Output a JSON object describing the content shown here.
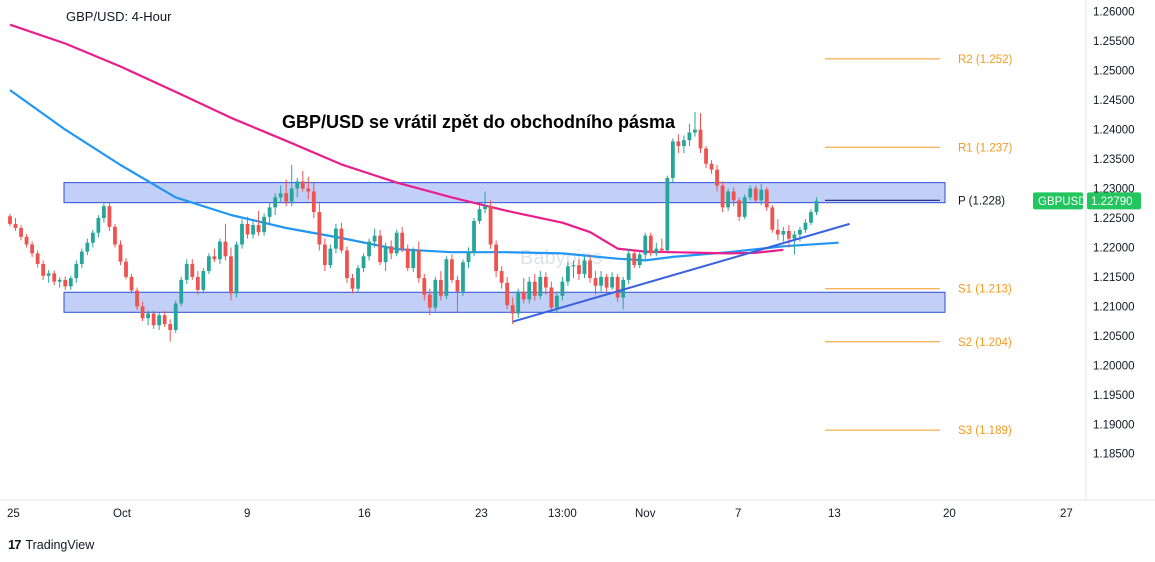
{
  "header": {
    "symbol_title": "GBP/USD: 4-Hour",
    "headline": "GBP/USD se vrátil zpět do obchodního pásma",
    "watermark": "Babypips"
  },
  "footer": {
    "brand": "TradingView",
    "brand_icon": "tradingview-logo-icon"
  },
  "colors": {
    "up_candle": "#26a69a",
    "down_candle": "#ef5350",
    "sma_fast": "#2196f3",
    "sma_slow": "#e91e8c",
    "zone_fill": "#b7c7f5",
    "zone_border": "#2b4fd8",
    "trendline": "#3962e0",
    "level_line": "#f59a23",
    "pivot_line": "#1a237e",
    "price_tag": "#22c55e"
  },
  "chart_data": {
    "type": "candlestick",
    "title": "GBP/USD: 4-Hour",
    "annotation": "GBP/USD se vrátil zpět do obchodního pásma",
    "ylim": [
      1.1808,
      1.2608
    ],
    "y_ticks": [
      "1.26000",
      "1.25500",
      "1.25000",
      "1.24500",
      "1.24000",
      "1.23500",
      "1.23000",
      "1.22500",
      "1.22000",
      "1.21500",
      "1.21000",
      "1.20500",
      "1.20000",
      "1.19500",
      "1.19000",
      "1.18500"
    ],
    "x_ticks": [
      "25",
      "Oct",
      "9",
      "16",
      "23",
      "13:00",
      "Nov",
      "7",
      "13",
      "20",
      "27"
    ],
    "current_price": {
      "label": "GBPUSD",
      "value": "1.22790"
    },
    "pivot_levels": [
      {
        "name": "R2",
        "label": "R2 (1.252)",
        "value": 1.252
      },
      {
        "name": "R1",
        "label": "R1 (1.237)",
        "value": 1.237
      },
      {
        "name": "P",
        "label": "P (1.228)",
        "value": 1.228
      },
      {
        "name": "S1",
        "label": "S1 (1.213)",
        "value": 1.213
      },
      {
        "name": "S2",
        "label": "S2 (1.204)",
        "value": 1.204
      },
      {
        "name": "S3",
        "label": "S3 (1.189)",
        "value": 1.189
      }
    ],
    "zones": [
      {
        "name": "resistance-zone",
        "from": 1.2276,
        "to": 1.231
      },
      {
        "name": "support-zone",
        "from": 1.209,
        "to": 1.2124
      }
    ],
    "trendline": {
      "from": {
        "bar": 91,
        "price": 1.2074
      },
      "to": {
        "bar": 152,
        "price": 1.224
      }
    },
    "series": [
      {
        "name": "SMA fast",
        "points": [
          [
            0,
            1.2467
          ],
          [
            10,
            1.24
          ],
          [
            20,
            1.234
          ],
          [
            30,
            1.2285
          ],
          [
            40,
            1.2255
          ],
          [
            50,
            1.2233
          ],
          [
            60,
            1.2216
          ],
          [
            70,
            1.2197
          ],
          [
            80,
            1.2192
          ],
          [
            90,
            1.2192
          ],
          [
            100,
            1.219
          ],
          [
            110,
            1.2181
          ],
          [
            115,
            1.2178
          ],
          [
            120,
            1.2184
          ],
          [
            130,
            1.2192
          ],
          [
            140,
            1.2202
          ],
          [
            150,
            1.2208
          ]
        ]
      },
      {
        "name": "SMA slow",
        "points": [
          [
            0,
            1.2578
          ],
          [
            10,
            1.2546
          ],
          [
            20,
            1.2507
          ],
          [
            30,
            1.2464
          ],
          [
            40,
            1.242
          ],
          [
            50,
            1.2381
          ],
          [
            60,
            1.2341
          ],
          [
            70,
            1.231
          ],
          [
            80,
            1.2285
          ],
          [
            90,
            1.2262
          ],
          [
            100,
            1.2242
          ],
          [
            105,
            1.2226
          ],
          [
            110,
            1.2198
          ],
          [
            115,
            1.2193
          ],
          [
            120,
            1.2192
          ],
          [
            130,
            1.219
          ],
          [
            135,
            1.2191
          ],
          [
            140,
            1.2196
          ]
        ]
      }
    ],
    "ohlc_4h": [
      [
        1.2253,
        1.2257,
        1.2236,
        1.224
      ],
      [
        1.224,
        1.225,
        1.2228,
        1.2233
      ],
      [
        1.2233,
        1.2238,
        1.2212,
        1.2218
      ],
      [
        1.2218,
        1.2223,
        1.22,
        1.2205
      ],
      [
        1.2205,
        1.221,
        1.2184,
        1.219
      ],
      [
        1.219,
        1.2195,
        1.2166,
        1.2172
      ],
      [
        1.2172,
        1.2178,
        1.2145,
        1.2152
      ],
      [
        1.2152,
        1.2162,
        1.214,
        1.2156
      ],
      [
        1.2156,
        1.2161,
        1.2136,
        1.2142
      ],
      [
        1.2142,
        1.215,
        1.2132,
        1.2145
      ],
      [
        1.2145,
        1.2151,
        1.2128,
        1.2134
      ],
      [
        1.2134,
        1.2152,
        1.2128,
        1.2148
      ],
      [
        1.2148,
        1.2178,
        1.214,
        1.2172
      ],
      [
        1.2172,
        1.2198,
        1.2165,
        1.2193
      ],
      [
        1.2193,
        1.2215,
        1.2187,
        1.2208
      ],
      [
        1.2208,
        1.223,
        1.22,
        1.2225
      ],
      [
        1.2225,
        1.2255,
        1.2217,
        1.225
      ],
      [
        1.225,
        1.2275,
        1.2242,
        1.227
      ],
      [
        1.227,
        1.2276,
        1.2228,
        1.2235
      ],
      [
        1.2235,
        1.224,
        1.22,
        1.2205
      ],
      [
        1.2205,
        1.2212,
        1.217,
        1.2176
      ],
      [
        1.2176,
        1.2182,
        1.2146,
        1.215
      ],
      [
        1.215,
        1.2155,
        1.2122,
        1.2127
      ],
      [
        1.2127,
        1.2132,
        1.2094,
        1.21
      ],
      [
        1.21,
        1.2108,
        1.2075,
        1.208
      ],
      [
        1.208,
        1.2093,
        1.2068,
        1.2088
      ],
      [
        1.2088,
        1.2093,
        1.2062,
        1.2068
      ],
      [
        1.2068,
        1.209,
        1.206,
        1.2085
      ],
      [
        1.2085,
        1.2092,
        1.2065,
        1.207
      ],
      [
        1.207,
        1.2078,
        1.204,
        1.206
      ],
      [
        1.206,
        1.211,
        1.2055,
        1.2105
      ],
      [
        1.2105,
        1.215,
        1.21,
        1.2145
      ],
      [
        1.2145,
        1.218,
        1.2138,
        1.2172
      ],
      [
        1.2172,
        1.218,
        1.2145,
        1.215
      ],
      [
        1.215,
        1.216,
        1.212,
        1.2128
      ],
      [
        1.2128,
        1.2165,
        1.2122,
        1.216
      ],
      [
        1.216,
        1.219,
        1.2155,
        1.2185
      ],
      [
        1.2185,
        1.2198,
        1.2175,
        1.218
      ],
      [
        1.218,
        1.2215,
        1.2172,
        1.221
      ],
      [
        1.221,
        1.224,
        1.2178,
        1.2185
      ],
      [
        1.2185,
        1.22,
        1.211,
        1.2122
      ],
      [
        1.2122,
        1.221,
        1.2115,
        1.2205
      ],
      [
        1.2205,
        1.2248,
        1.2198,
        1.224
      ],
      [
        1.224,
        1.2252,
        1.2215,
        1.2222
      ],
      [
        1.2222,
        1.2245,
        1.2215,
        1.2238
      ],
      [
        1.2238,
        1.2262,
        1.222,
        1.2226
      ],
      [
        1.2226,
        1.2258,
        1.222,
        1.2252
      ],
      [
        1.2252,
        1.2275,
        1.224,
        1.2268
      ],
      [
        1.2268,
        1.2292,
        1.2255,
        1.2285
      ],
      [
        1.2285,
        1.2305,
        1.2278,
        1.2292
      ],
      [
        1.2292,
        1.2315,
        1.227,
        1.2278
      ],
      [
        1.2278,
        1.234,
        1.227,
        1.23
      ],
      [
        1.23,
        1.2318,
        1.2285,
        1.2312
      ],
      [
        1.2312,
        1.233,
        1.2295,
        1.23
      ],
      [
        1.23,
        1.232,
        1.2282,
        1.2295
      ],
      [
        1.2295,
        1.231,
        1.225,
        1.226
      ],
      [
        1.226,
        1.2275,
        1.2195,
        1.2205
      ],
      [
        1.2205,
        1.2215,
        1.216,
        1.217
      ],
      [
        1.217,
        1.2205,
        1.2165,
        1.2198
      ],
      [
        1.2198,
        1.224,
        1.219,
        1.2232
      ],
      [
        1.2232,
        1.2242,
        1.219,
        1.2195
      ],
      [
        1.2195,
        1.2202,
        1.214,
        1.2148
      ],
      [
        1.2148,
        1.2155,
        1.2122,
        1.213
      ],
      [
        1.213,
        1.217,
        1.2125,
        1.2165
      ],
      [
        1.2165,
        1.219,
        1.2158,
        1.2185
      ],
      [
        1.2185,
        1.2215,
        1.2178,
        1.221
      ],
      [
        1.221,
        1.2232,
        1.22,
        1.222
      ],
      [
        1.222,
        1.223,
        1.217,
        1.2175
      ],
      [
        1.2175,
        1.2208,
        1.216,
        1.2202
      ],
      [
        1.2202,
        1.2212,
        1.218,
        1.219
      ],
      [
        1.219,
        1.223,
        1.2185,
        1.2225
      ],
      [
        1.2225,
        1.2235,
        1.2192,
        1.2198
      ],
      [
        1.2198,
        1.2205,
        1.216,
        1.2165
      ],
      [
        1.2165,
        1.22,
        1.2158,
        1.2195
      ],
      [
        1.2195,
        1.221,
        1.214,
        1.2148
      ],
      [
        1.2148,
        1.2155,
        1.211,
        1.212
      ],
      [
        1.212,
        1.213,
        1.2085,
        1.2098
      ],
      [
        1.2098,
        1.215,
        1.2092,
        1.2145
      ],
      [
        1.2145,
        1.216,
        1.211,
        1.2118
      ],
      [
        1.2118,
        1.2185,
        1.2112,
        1.218
      ],
      [
        1.218,
        1.2188,
        1.214,
        1.2145
      ],
      [
        1.2145,
        1.2152,
        1.209,
        1.2125
      ],
      [
        1.2125,
        1.218,
        1.2118,
        1.2175
      ],
      [
        1.2175,
        1.22,
        1.2165,
        1.2192
      ],
      [
        1.2192,
        1.225,
        1.2185,
        1.2245
      ],
      [
        1.2245,
        1.2272,
        1.224,
        1.2265
      ],
      [
        1.2265,
        1.2295,
        1.2258,
        1.227
      ],
      [
        1.227,
        1.228,
        1.2198,
        1.2205
      ],
      [
        1.2205,
        1.2212,
        1.215,
        1.216
      ],
      [
        1.216,
        1.2168,
        1.213,
        1.214
      ],
      [
        1.214,
        1.215,
        1.2095,
        1.2102
      ],
      [
        1.2102,
        1.2115,
        1.207,
        1.2088
      ],
      [
        1.2088,
        1.213,
        1.208,
        1.2125
      ],
      [
        1.2125,
        1.2148,
        1.2105,
        1.2112
      ],
      [
        1.2112,
        1.215,
        1.2105,
        1.2142
      ],
      [
        1.2142,
        1.2155,
        1.211,
        1.2118
      ],
      [
        1.2118,
        1.216,
        1.2112,
        1.215
      ],
      [
        1.215,
        1.2158,
        1.212,
        1.2132
      ],
      [
        1.2132,
        1.2142,
        1.209,
        1.2098
      ],
      [
        1.2098,
        1.2125,
        1.209,
        1.2118
      ],
      [
        1.2118,
        1.215,
        1.211,
        1.2142
      ],
      [
        1.2142,
        1.2175,
        1.2135,
        1.2168
      ],
      [
        1.2168,
        1.2178,
        1.2148,
        1.217
      ],
      [
        1.217,
        1.218,
        1.2145,
        1.2155
      ],
      [
        1.2155,
        1.2185,
        1.2148,
        1.2178
      ],
      [
        1.2178,
        1.2188,
        1.214,
        1.2148
      ],
      [
        1.2148,
        1.216,
        1.212,
        1.2135
      ],
      [
        1.2135,
        1.216,
        1.2125,
        1.215
      ],
      [
        1.215,
        1.2155,
        1.2125,
        1.2132
      ],
      [
        1.2132,
        1.2158,
        1.2128,
        1.215
      ],
      [
        1.215,
        1.2155,
        1.2108,
        1.2115
      ],
      [
        1.2115,
        1.215,
        1.2095,
        1.2145
      ],
      [
        1.2145,
        1.2198,
        1.2138,
        1.219
      ],
      [
        1.219,
        1.2195,
        1.2165,
        1.217
      ],
      [
        1.217,
        1.2195,
        1.2165,
        1.2188
      ],
      [
        1.2188,
        1.2225,
        1.218,
        1.222
      ],
      [
        1.222,
        1.2225,
        1.2185,
        1.219
      ],
      [
        1.219,
        1.2208,
        1.2185,
        1.2198
      ],
      [
        1.2198,
        1.2215,
        1.219,
        1.2195
      ],
      [
        1.2195,
        1.2322,
        1.219,
        1.2318
      ],
      [
        1.2318,
        1.2385,
        1.231,
        1.238
      ],
      [
        1.238,
        1.2392,
        1.236,
        1.2372
      ],
      [
        1.2372,
        1.239,
        1.236,
        1.2382
      ],
      [
        1.2382,
        1.241,
        1.2372,
        1.2395
      ],
      [
        1.2395,
        1.243,
        1.2388,
        1.24
      ],
      [
        1.24,
        1.2428,
        1.236,
        1.2368
      ],
      [
        1.2368,
        1.2372,
        1.2335,
        1.2342
      ],
      [
        1.2342,
        1.2348,
        1.2325,
        1.2332
      ],
      [
        1.2332,
        1.234,
        1.2295,
        1.2305
      ],
      [
        1.2305,
        1.2312,
        1.226,
        1.2268
      ],
      [
        1.2268,
        1.23,
        1.2262,
        1.2295
      ],
      [
        1.2295,
        1.2302,
        1.227,
        1.228
      ],
      [
        1.228,
        1.2285,
        1.2245,
        1.2252
      ],
      [
        1.2252,
        1.229,
        1.2248,
        1.2285
      ],
      [
        1.2285,
        1.2305,
        1.228,
        1.23
      ],
      [
        1.23,
        1.2305,
        1.2275,
        1.228
      ],
      [
        1.228,
        1.2308,
        1.2272,
        1.2298
      ],
      [
        1.2298,
        1.2302,
        1.2262,
        1.2268
      ],
      [
        1.2268,
        1.2272,
        1.2225,
        1.223
      ],
      [
        1.223,
        1.2248,
        1.2212,
        1.2222
      ],
      [
        1.2222,
        1.2235,
        1.221,
        1.2228
      ],
      [
        1.2228,
        1.2238,
        1.22,
        1.2215
      ],
      [
        1.2215,
        1.2228,
        1.2188,
        1.2222
      ],
      [
        1.2222,
        1.2235,
        1.221,
        1.223
      ],
      [
        1.223,
        1.2248,
        1.2225,
        1.2242
      ],
      [
        1.2242,
        1.2265,
        1.2238,
        1.226
      ],
      [
        1.226,
        1.2285,
        1.2255,
        1.2279
      ]
    ]
  }
}
